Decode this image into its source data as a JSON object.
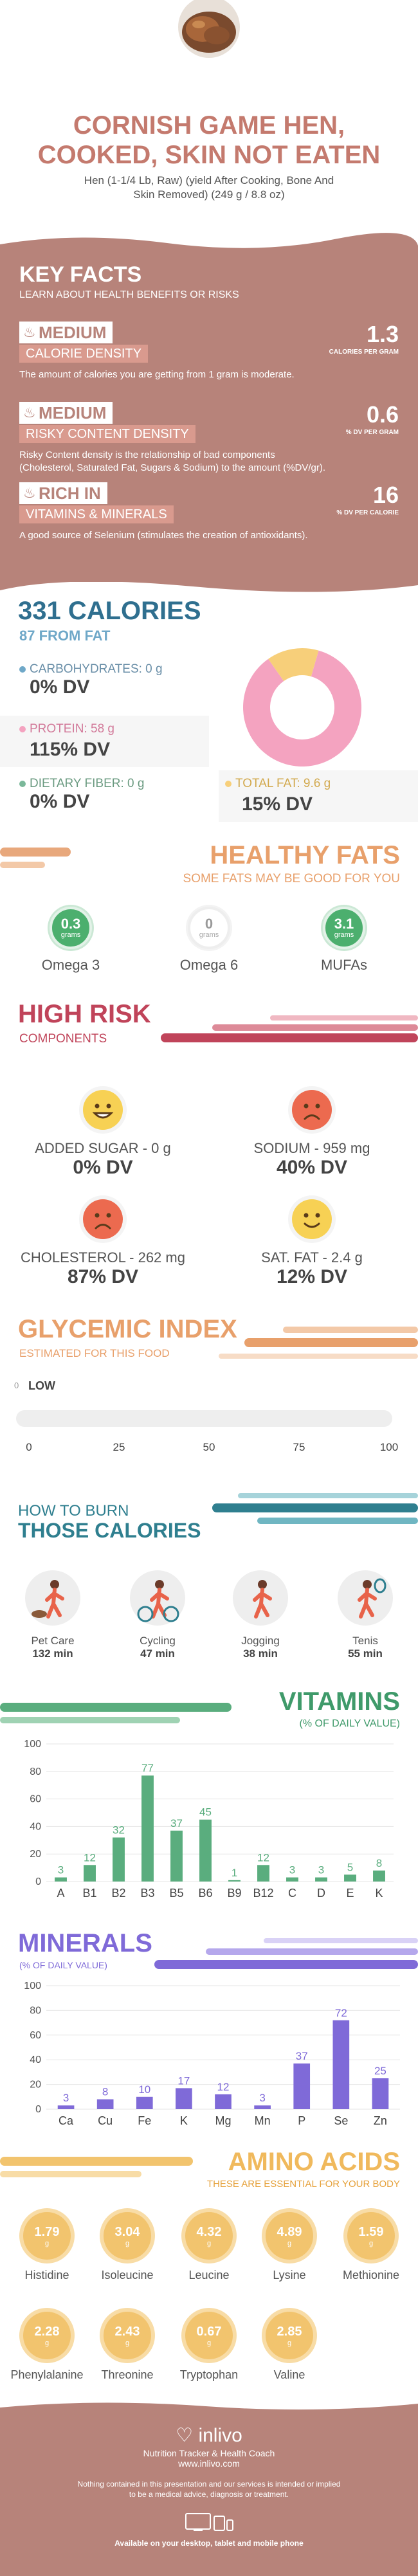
{
  "header": {
    "title_line1": "CORNISH GAME HEN,",
    "title_line2": "COOKED, SKIN NOT EATEN",
    "subtitle_line1": "Hen (1-1/4 Lb, Raw) (yield After Cooking, Bone And",
    "subtitle_line2": "Skin Removed) (249 g / 8.8 oz)"
  },
  "key_facts": {
    "title": "KEY FACTS",
    "subtitle": "LEARN ABOUT HEALTH BENEFITS OR RISKS",
    "items": [
      {
        "level": "MEDIUM",
        "name": "CALORIE DENSITY",
        "value": "1.3",
        "unit": "CALORIES PER GRAM",
        "desc_line1": "The amount of calories you are getting from 1 gram is moderate.",
        "desc_line2": ""
      },
      {
        "level": "MEDIUM",
        "name": "RISKY CONTENT DENSITY",
        "value": "0.6",
        "unit": "% DV PER GRAM",
        "desc_line1": "Risky Content density is the relationship of bad components",
        "desc_line2": "(Cholesterol, Saturated Fat, Sugars & Sodium) to the amount (%DV/gr)."
      },
      {
        "level": "RICH IN",
        "name": "VITAMINS & MINERALS",
        "value": "16",
        "unit": "% DV PER CALORIE",
        "desc_line1": "A good source of Selenium (stimulates the creation of antioxidants).",
        "desc_line2": ""
      }
    ]
  },
  "calories": {
    "title": "331 CALORIES",
    "from_fat": "87 FROM FAT",
    "carbs_label": "CARBOHYDRATES: 0 g",
    "carbs_dv": "0% DV",
    "protein_label": "PROTEIN: 58 g",
    "protein_dv": "115% DV",
    "fiber_label": "DIETARY FIBER: 0 g",
    "fiber_dv": "0% DV",
    "fat_label": "TOTAL FAT: 9.6 g",
    "fat_dv": "15% DV",
    "colors": {
      "carbs": "#6fa8c8",
      "protein": "#f4a3c0",
      "fiber": "#7bb89a",
      "fat": "#f7cf7a"
    }
  },
  "healthy_fats": {
    "title": "HEALTHY FATS",
    "subtitle": "SOME FATS MAY BE GOOD FOR YOU",
    "items": [
      {
        "value": "0.3",
        "unit": "grams",
        "label": "Omega 3",
        "color": "#4caf6e"
      },
      {
        "value": "0",
        "unit": "grams",
        "label": "Omega 6",
        "color": "#ffffff"
      },
      {
        "value": "3.1",
        "unit": "grams",
        "label": "MUFAs",
        "color": "#4caf6e"
      }
    ]
  },
  "high_risk": {
    "title": "HIGH RISK",
    "subtitle": "COMPONENTS",
    "items": [
      {
        "label": "ADDED SUGAR - 0 g",
        "dv": "0% DV",
        "face": "grin",
        "color": "#f7d154"
      },
      {
        "label": "SODIUM - 959 mg",
        "dv": "40% DV",
        "face": "sad",
        "color": "#ec6a4f"
      },
      {
        "label": "CHOLESTEROL - 262 mg",
        "dv": "87% DV",
        "face": "sad",
        "color": "#ec6a4f"
      },
      {
        "label": "SAT. FAT - 2.4 g",
        "dv": "12% DV",
        "face": "smile",
        "color": "#f7d154"
      }
    ]
  },
  "glycemic": {
    "title": "GLYCEMIC INDEX",
    "subtitle": "ESTIMATED FOR THIS FOOD",
    "value": 0,
    "value_label": "0",
    "level": "LOW",
    "ticks": [
      "0",
      "25",
      "50",
      "75",
      "100"
    ]
  },
  "burn": {
    "title_line1": "HOW TO BURN",
    "title_line2": "THOSE CALORIES",
    "items": [
      {
        "label": "Pet Care",
        "time": "132 min",
        "icon": "dog-walking-icon"
      },
      {
        "label": "Cycling",
        "time": "47 min",
        "icon": "cycling-icon"
      },
      {
        "label": "Jogging",
        "time": "38 min",
        "icon": "jogging-icon"
      },
      {
        "label": "Tenis",
        "time": "55 min",
        "icon": "tennis-icon"
      }
    ]
  },
  "vitamins": {
    "title": "VITAMINS",
    "subtitle": "(% OF DAILY VALUE)"
  },
  "minerals": {
    "title": "MINERALS",
    "subtitle": "(% OF DAILY VALUE)"
  },
  "chart_data": [
    {
      "type": "bar",
      "title": "VITAMINS",
      "subtitle": "(% OF DAILY VALUE)",
      "categories": [
        "A",
        "B1",
        "B2",
        "B3",
        "B5",
        "B6",
        "B9",
        "B12",
        "C",
        "D",
        "E",
        "K"
      ],
      "values": [
        3,
        12,
        32,
        77,
        37,
        45,
        1,
        12,
        3,
        3,
        5,
        8
      ],
      "ylim": [
        0,
        100
      ],
      "yticks": [
        0,
        20,
        40,
        60,
        80,
        100
      ],
      "color": "#5aad7e",
      "grid": true
    },
    {
      "type": "bar",
      "title": "MINERALS",
      "subtitle": "(% OF DAILY VALUE)",
      "categories": [
        "Ca",
        "Cu",
        "Fe",
        "K",
        "Mg",
        "Mn",
        "P",
        "Se",
        "Zn"
      ],
      "values": [
        3,
        8,
        10,
        17,
        12,
        3,
        37,
        72,
        25
      ],
      "ylim": [
        0,
        100
      ],
      "yticks": [
        0,
        20,
        40,
        60,
        80,
        100
      ],
      "color": "#7f6ad8",
      "grid": true
    },
    {
      "type": "pie",
      "title": "331 CALORIES",
      "categories": [
        "PROTEIN",
        "TOTAL FAT",
        "CARBOHYDRATES",
        "DIETARY FIBER"
      ],
      "values": [
        58,
        9.6,
        0,
        0
      ]
    }
  ],
  "amino": {
    "title": "AMINO ACIDS",
    "subtitle": "THESE ARE ESSENTIAL FOR YOUR BODY",
    "unit": "g",
    "items": [
      {
        "value": "1.79",
        "label": "Histidine"
      },
      {
        "value": "3.04",
        "label": "Isoleucine"
      },
      {
        "value": "4.32",
        "label": "Leucine"
      },
      {
        "value": "4.89",
        "label": "Lysine"
      },
      {
        "value": "1.59",
        "label": "Methionine"
      },
      {
        "value": "2.28",
        "label": "Phenylalanine"
      },
      {
        "value": "2.43",
        "label": "Threonine"
      },
      {
        "value": "0.67",
        "label": "Tryptophan"
      },
      {
        "value": "2.85",
        "label": "Valine"
      }
    ]
  },
  "footer": {
    "brand": "inlivo",
    "tagline": "Nutrition Tracker & Health Coach",
    "url": "www.inlivo.com",
    "disclaimer_line1": "Nothing contained in this presentation and our services is intended or implied",
    "disclaimer_line2": "to be a medical advice, diagnosis or treatment.",
    "available": "Available on your desktop, tablet and mobile phone"
  }
}
